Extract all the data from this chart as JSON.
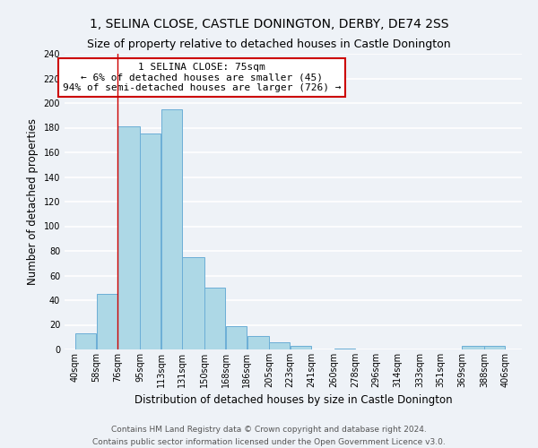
{
  "title": "1, SELINA CLOSE, CASTLE DONINGTON, DERBY, DE74 2SS",
  "subtitle": "Size of property relative to detached houses in Castle Donington",
  "xlabel": "Distribution of detached houses by size in Castle Donington",
  "ylabel": "Number of detached properties",
  "bar_left_edges": [
    40,
    58,
    76,
    95,
    113,
    131,
    150,
    168,
    186,
    205,
    223,
    241,
    260,
    278,
    296,
    314,
    333,
    351,
    369,
    388
  ],
  "bar_heights": [
    13,
    45,
    181,
    175,
    195,
    75,
    50,
    19,
    11,
    6,
    3,
    0,
    1,
    0,
    0,
    0,
    0,
    0,
    3,
    3
  ],
  "bar_widths": [
    18,
    18,
    19,
    18,
    18,
    19,
    18,
    18,
    19,
    18,
    18,
    19,
    18,
    18,
    18,
    19,
    18,
    18,
    19,
    18
  ],
  "tick_labels": [
    "40sqm",
    "58sqm",
    "76sqm",
    "95sqm",
    "113sqm",
    "131sqm",
    "150sqm",
    "168sqm",
    "186sqm",
    "205sqm",
    "223sqm",
    "241sqm",
    "260sqm",
    "278sqm",
    "296sqm",
    "314sqm",
    "333sqm",
    "351sqm",
    "369sqm",
    "388sqm",
    "406sqm"
  ],
  "tick_positions": [
    40,
    58,
    76,
    95,
    113,
    131,
    150,
    168,
    186,
    205,
    223,
    241,
    260,
    278,
    296,
    314,
    333,
    351,
    369,
    388,
    406
  ],
  "bar_color": "#add8e6",
  "bar_edge_color": "#6baed6",
  "highlight_line_x": 76,
  "annotation_text_line1": "1 SELINA CLOSE: 75sqm",
  "annotation_text_line2": "← 6% of detached houses are smaller (45)",
  "annotation_text_line3": "94% of semi-detached houses are larger (726) →",
  "annotation_box_color": "#cc0000",
  "ylim": [
    0,
    240
  ],
  "xlim": [
    31,
    420
  ],
  "yticks": [
    0,
    20,
    40,
    60,
    80,
    100,
    120,
    140,
    160,
    180,
    200,
    220,
    240
  ],
  "footer_line1": "Contains HM Land Registry data © Crown copyright and database right 2024.",
  "footer_line2": "Contains public sector information licensed under the Open Government Licence v3.0.",
  "background_color": "#eef2f7",
  "grid_color": "#ffffff",
  "title_fontsize": 10,
  "subtitle_fontsize": 9,
  "axis_label_fontsize": 8.5,
  "tick_fontsize": 7,
  "annotation_fontsize": 8,
  "footer_fontsize": 6.5
}
